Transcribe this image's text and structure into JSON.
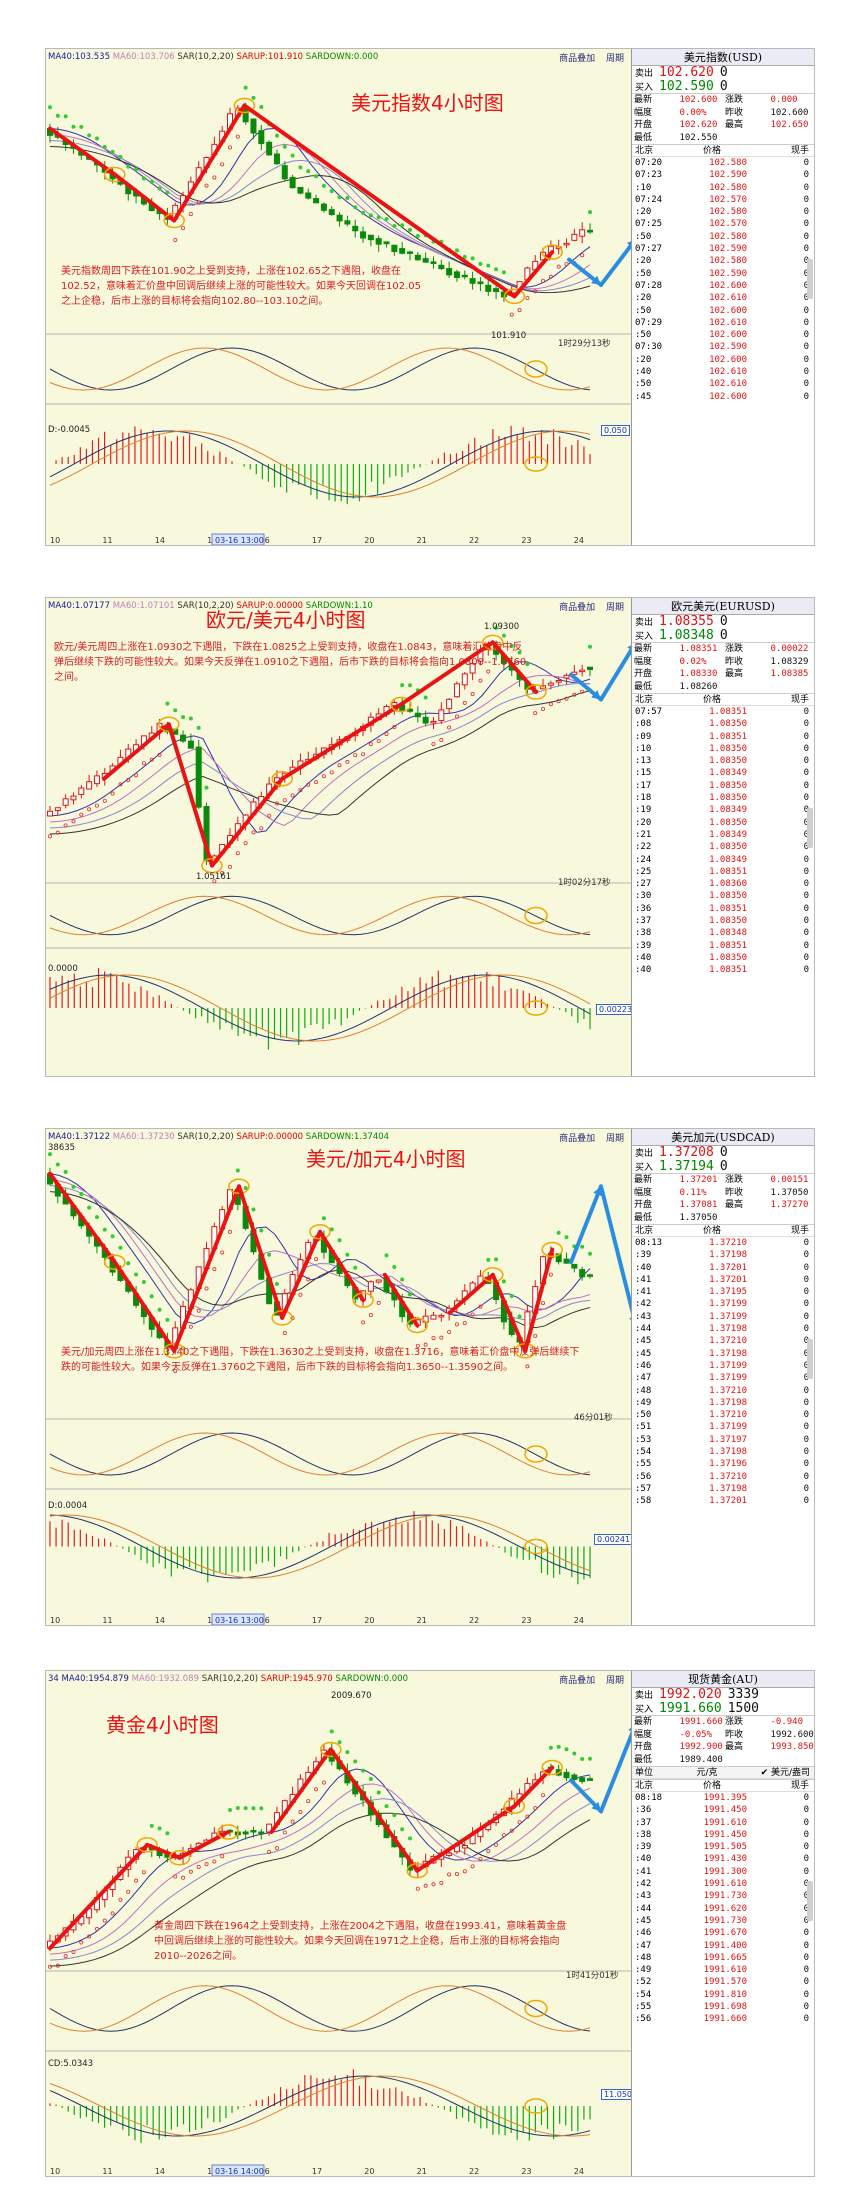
{
  "charts": [
    {
      "title": "美元指数4小时图",
      "indicators": {
        "ma40": "MA40:103.535",
        "ma60": "MA60:103.706",
        "sar": "SAR(10,2,20)",
        "sarup": "SARUP:101.910",
        "sardown": "SARDOWN:0.000"
      },
      "toolbar": [
        "商品叠加",
        "周期"
      ],
      "description": "美元指数周四下跌在101.90之上受到支持，上涨在102.65之下遇阻，收盘在102.52，意味着汇价盘中回调后继续上涨的可能性较大。如果今天回调在102.05之上企稳，后市上涨的目标将会指向102.80--103.10之间。",
      "low_label": "101.910",
      "timer": "1时29分13秒",
      "macd_label": "D:-0.0045",
      "macd_value": "0.050",
      "x_ticks": [
        "10",
        "11",
        "14",
        "15",
        "16",
        "17",
        "20",
        "21",
        "22",
        "23",
        "24"
      ],
      "x_date_box": "03-16 13:00",
      "quote": {
        "name": "美元指数(USD)",
        "sell_label": "卖出",
        "sell": "102.620",
        "sell_sub": "0",
        "buy_label": "买入",
        "buy": "102.590",
        "buy_sub": "0",
        "stats": [
          [
            "最新",
            "102.600",
            "涨跌",
            "0.000"
          ],
          [
            "幅度",
            "0.00%",
            "昨收",
            "102.600"
          ],
          [
            "开盘",
            "102.620",
            "最高",
            "102.650"
          ],
          [
            "最低",
            "102.550",
            "",
            ""
          ]
        ],
        "th": [
          "北京",
          "价格",
          "现手"
        ],
        "ticks": [
          [
            "07:20",
            "102.580",
            "0"
          ],
          [
            "07:23",
            "102.590",
            "0"
          ],
          [
            ":10",
            "102.580",
            "0"
          ],
          [
            "07:24",
            "102.570",
            "0"
          ],
          [
            ":20",
            "102.580",
            "0"
          ],
          [
            "07:25",
            "102.570",
            "0"
          ],
          [
            ":50",
            "102.580",
            "0"
          ],
          [
            "07:27",
            "102.590",
            "0"
          ],
          [
            ":20",
            "102.580",
            "0"
          ],
          [
            ":50",
            "102.590",
            "0"
          ],
          [
            "07:28",
            "102.600",
            "0"
          ],
          [
            ":20",
            "102.610",
            "0"
          ],
          [
            ":50",
            "102.600",
            "0"
          ],
          [
            "07:29",
            "102.610",
            "0"
          ],
          [
            ":50",
            "102.600",
            "0"
          ],
          [
            "07:30",
            "102.590",
            "0"
          ],
          [
            ":20",
            "102.600",
            "0"
          ],
          [
            ":40",
            "102.610",
            "0"
          ],
          [
            ":50",
            "102.610",
            "0"
          ],
          [
            ":45",
            "102.600",
            "0"
          ]
        ]
      }
    },
    {
      "title": "欧元/美元4小时图",
      "indicators": {
        "ma40": "MA40:1.07177",
        "ma60": "MA60:1.07101",
        "sar": "SAR(10,2,20)",
        "sarup": "SARUP:0.00000",
        "sardown": "SARDOWN:1.10"
      },
      "toolbar": [
        "商品叠加",
        "周期"
      ],
      "description": "欧元/美元周四上涨在1.0930之下遇阻，下跌在1.0825之上受到支持，收盘在1.0843，意味着汇价盘中反弹后继续下跌的可能性较大。如果今天反弹在1.0910之下遇阻，后市下跌的目标将会指向1.0800--1.0760之间。",
      "high_label": "1.09300",
      "low_label": "1.05161",
      "timer": "1时02分17秒",
      "macd_label": "0.0000",
      "macd_value": "0.00223",
      "x_ticks": [],
      "x_date_box": "",
      "quote": {
        "name": "欧元美元(EURUSD)",
        "sell_label": "卖出",
        "sell": "1.08355",
        "sell_sub": "0",
        "buy_label": "买入",
        "buy": "1.08348",
        "buy_sub": "0",
        "stats": [
          [
            "最新",
            "1.08351",
            "涨跌",
            "0.00022"
          ],
          [
            "幅度",
            "0.02%",
            "昨收",
            "1.08329"
          ],
          [
            "开盘",
            "1.08330",
            "最高",
            "1.08385"
          ],
          [
            "最低",
            "1.08260",
            "",
            ""
          ]
        ],
        "th": [
          "北京",
          "价格",
          "现手"
        ],
        "ticks": [
          [
            "07:57",
            "1.08351",
            "0"
          ],
          [
            ":08",
            "1.08350",
            "0"
          ],
          [
            ":09",
            "1.08351",
            "0"
          ],
          [
            ":10",
            "1.08350",
            "0"
          ],
          [
            ":13",
            "1.08350",
            "0"
          ],
          [
            ":15",
            "1.08349",
            "0"
          ],
          [
            ":17",
            "1.08350",
            "0"
          ],
          [
            ":18",
            "1.08350",
            "0"
          ],
          [
            ":19",
            "1.08349",
            "0"
          ],
          [
            ":20",
            "1.08350",
            "0"
          ],
          [
            ":21",
            "1.08349",
            "0"
          ],
          [
            ":22",
            "1.08350",
            "0"
          ],
          [
            ":24",
            "1.08349",
            "0"
          ],
          [
            ":25",
            "1.08351",
            "0"
          ],
          [
            ":27",
            "1.08360",
            "0"
          ],
          [
            ":30",
            "1.08350",
            "0"
          ],
          [
            ":36",
            "1.08351",
            "0"
          ],
          [
            ":37",
            "1.08350",
            "0"
          ],
          [
            ":38",
            "1.08348",
            "0"
          ],
          [
            ":39",
            "1.08351",
            "0"
          ],
          [
            ":40",
            "1.08350",
            "0"
          ],
          [
            ":40",
            "1.08351",
            "0"
          ]
        ]
      }
    },
    {
      "title": "美元/加元4小时图",
      "indicators": {
        "ma40": "MA40:1.37122",
        "ma60": "MA60:1.37230",
        "sar": "SAR(10,2,20)",
        "sarup": "SARUP:0.00000",
        "sardown": "SARDOWN:1.37404"
      },
      "toolbar": [
        "商品叠加",
        "周期"
      ],
      "description": "美元/加元周四上涨在1.3740之下遇阻，下跌在1.3630之上受到支持，收盘在1.3716，意味着汇价盘中反弹后继续下跌的可能性较大。如果今天反弹在1.3760之下遇阻，后市下跌的目标将会指向1.3650--1.3590之间。",
      "high_label": "38635",
      "timer": "46分01秒",
      "macd_label": "D:0.0004",
      "macd_value": "0.00241",
      "x_ticks": [
        "10",
        "11",
        "14",
        "15",
        "16",
        "17",
        "20",
        "21",
        "22",
        "23",
        "24"
      ],
      "x_date_box": "03-16 13:00",
      "quote": {
        "name": "美元加元(USDCAD)",
        "sell_label": "卖出",
        "sell": "1.37208",
        "sell_sub": "0",
        "buy_label": "买入",
        "buy": "1.37194",
        "buy_sub": "0",
        "stats": [
          [
            "最新",
            "1.37201",
            "涨跌",
            "0.00151"
          ],
          [
            "幅度",
            "0.11%",
            "昨收",
            "1.37050"
          ],
          [
            "开盘",
            "1.37081",
            "最高",
            "1.37270"
          ],
          [
            "最低",
            "1.37050",
            "",
            ""
          ]
        ],
        "th": [
          "北京",
          "价格",
          "现手"
        ],
        "ticks": [
          [
            "08:13",
            "1.37210",
            "0"
          ],
          [
            ":39",
            "1.37198",
            "0"
          ],
          [
            ":40",
            "1.37201",
            "0"
          ],
          [
            ":41",
            "1.37201",
            "0"
          ],
          [
            ":41",
            "1.37195",
            "0"
          ],
          [
            ":42",
            "1.37199",
            "0"
          ],
          [
            ":43",
            "1.37199",
            "0"
          ],
          [
            ":44",
            "1.37198",
            "0"
          ],
          [
            ":45",
            "1.37210",
            "0"
          ],
          [
            ":45",
            "1.37198",
            "0"
          ],
          [
            ":46",
            "1.37199",
            "0"
          ],
          [
            ":47",
            "1.37199",
            "0"
          ],
          [
            ":48",
            "1.37210",
            "0"
          ],
          [
            ":49",
            "1.37198",
            "0"
          ],
          [
            ":50",
            "1.37210",
            "0"
          ],
          [
            ":51",
            "1.37199",
            "0"
          ],
          [
            ":53",
            "1.37197",
            "0"
          ],
          [
            ":54",
            "1.37198",
            "0"
          ],
          [
            ":55",
            "1.37196",
            "0"
          ],
          [
            ":56",
            "1.37210",
            "0"
          ],
          [
            ":57",
            "1.37198",
            "0"
          ],
          [
            ":58",
            "1.37201",
            "0"
          ]
        ]
      }
    },
    {
      "title": "黄金4小时图",
      "indicators": {
        "ma40": "34 MA40:1954.879",
        "ma60": "MA60:1932.089",
        "sar": "SAR(10,2,20)",
        "sarup": "SARUP:1945.970",
        "sardown": "SARDOWN:0.000"
      },
      "toolbar": [
        "商品叠加",
        "周期"
      ],
      "description": "黄金周四下跌在1964之上受到支持，上涨在2004之下遇阻，收盘在1993.41，意味着黄金盘中回调后继续上涨的可能性较大。如果今天回调在1971之上企稳，后市上涨的目标将会指向2010--2026之间。",
      "high_label": "2009.670",
      "timer": "1时41分01秒",
      "macd_label": "CD:5.0343",
      "macd_value": "11.050",
      "x_ticks": [
        "10",
        "11",
        "14",
        "15",
        "16",
        "17",
        "20",
        "21",
        "22",
        "23",
        "24"
      ],
      "x_date_box": "03-16 14:00",
      "quote": {
        "name": "现货黄金(AU)",
        "sell_label": "卖出",
        "sell": "1992.020",
        "sell_sub": "3339",
        "buy_label": "买入",
        "buy": "1991.660",
        "buy_sub": "1500",
        "stats": [
          [
            "最新",
            "1991.660",
            "涨跌",
            "-0.940"
          ],
          [
            "幅度",
            "-0.05%",
            "昨收",
            "1992.600"
          ],
          [
            "开盘",
            "1992.900",
            "最高",
            "1993.850"
          ],
          [
            "最低",
            "1989.400",
            "",
            ""
          ]
        ],
        "unit_row": [
          "单位",
          "元/克",
          "美元/盎司"
        ],
        "th": [
          "北京",
          "价格",
          "现手"
        ],
        "ticks": [
          [
            "08:18",
            "1991.395",
            "0"
          ],
          [
            ":36",
            "1991.450",
            "0"
          ],
          [
            ":37",
            "1991.610",
            "0"
          ],
          [
            ":38",
            "1991.450",
            "0"
          ],
          [
            ":39",
            "1991.505",
            "0"
          ],
          [
            ":40",
            "1991.430",
            "0"
          ],
          [
            ":41",
            "1991.300",
            "0"
          ],
          [
            ":42",
            "1991.610",
            "0"
          ],
          [
            ":43",
            "1991.730",
            "0"
          ],
          [
            ":44",
            "1991.620",
            "0"
          ],
          [
            ":45",
            "1991.730",
            "0"
          ],
          [
            ":46",
            "1991.670",
            "0"
          ],
          [
            ":47",
            "1991.400",
            "0"
          ],
          [
            ":48",
            "1991.665",
            "0"
          ],
          [
            ":49",
            "1991.610",
            "0"
          ],
          [
            ":52",
            "1991.570",
            "0"
          ],
          [
            ":54",
            "1991.810",
            "0"
          ],
          [
            ":55",
            "1991.698",
            "0"
          ],
          [
            ":56",
            "1991.660",
            "0"
          ]
        ]
      }
    }
  ],
  "colors": {
    "title_red": "#ee1111",
    "arrow_blue": "#2a8de0",
    "candle_green": "#0a8a0a",
    "candle_red": "#d81818",
    "ellipse": "#f0a800"
  }
}
